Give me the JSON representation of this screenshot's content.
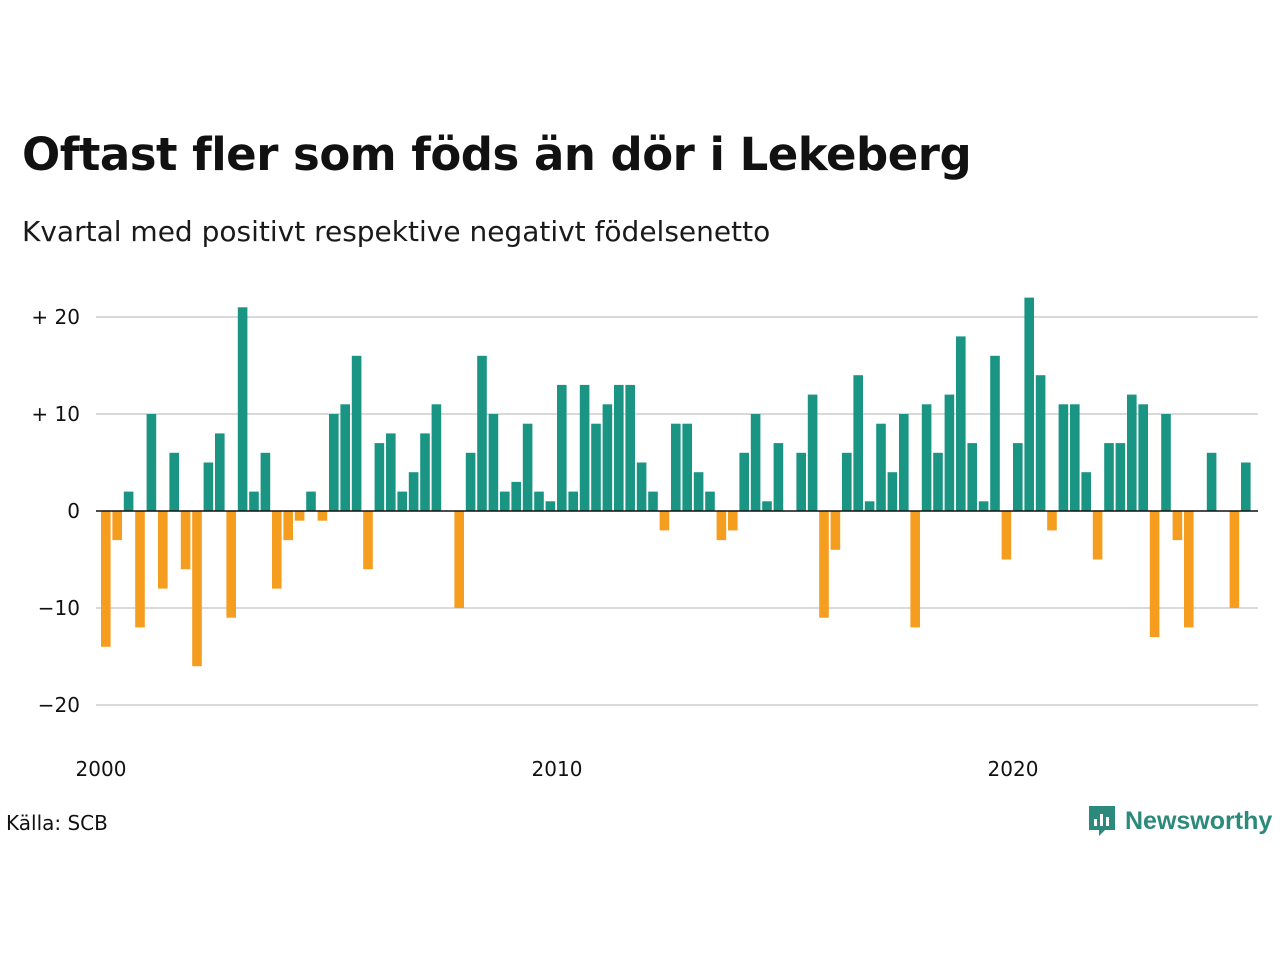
{
  "title": "Oftast fler som föds än dör i Lekeberg",
  "subtitle": "Kvartal med positivt respektive negativt födelsenetto",
  "source": "Källa: SCB",
  "brand": "Newsworthy",
  "colors": {
    "positive": "#1a9483",
    "negative": "#f59d1f",
    "grid": "#d9d9d9",
    "brand": "#2b8a7b"
  },
  "chart_data": {
    "type": "bar",
    "x_start": "2000 Q1",
    "x_ticks": [
      {
        "label": "2000",
        "year": 2000
      },
      {
        "label": "2010",
        "year": 2010
      },
      {
        "label": "2020",
        "year": 2020
      }
    ],
    "y_ticks": [
      {
        "label": "+ 20",
        "value": 20
      },
      {
        "label": "+ 10",
        "value": 10
      },
      {
        "label": "0",
        "value": 0
      },
      {
        "label": "−10",
        "value": -10
      },
      {
        "label": "−20",
        "value": -20
      }
    ],
    "ylim": [
      -22,
      22
    ],
    "grid": true,
    "values": [
      -14,
      -3,
      2,
      -12,
      10,
      -8,
      6,
      -6,
      -16,
      5,
      8,
      -11,
      21,
      2,
      6,
      -8,
      -3,
      -1,
      2,
      -1,
      10,
      11,
      16,
      -6,
      7,
      8,
      2,
      4,
      8,
      11,
      0,
      -10,
      6,
      16,
      10,
      2,
      3,
      9,
      2,
      1,
      13,
      2,
      13,
      9,
      11,
      13,
      13,
      5,
      2,
      -2,
      9,
      9,
      4,
      2,
      -3,
      -2,
      6,
      10,
      1,
      7,
      0,
      6,
      12,
      -11,
      -4,
      6,
      14,
      1,
      9,
      4,
      10,
      -12,
      11,
      6,
      12,
      18,
      7,
      1,
      16,
      -5,
      7,
      22,
      14,
      -2,
      11,
      11,
      4,
      -5,
      7,
      7,
      12,
      11,
      -13,
      10,
      -3,
      -12,
      0,
      6,
      0,
      -10,
      5
    ]
  }
}
